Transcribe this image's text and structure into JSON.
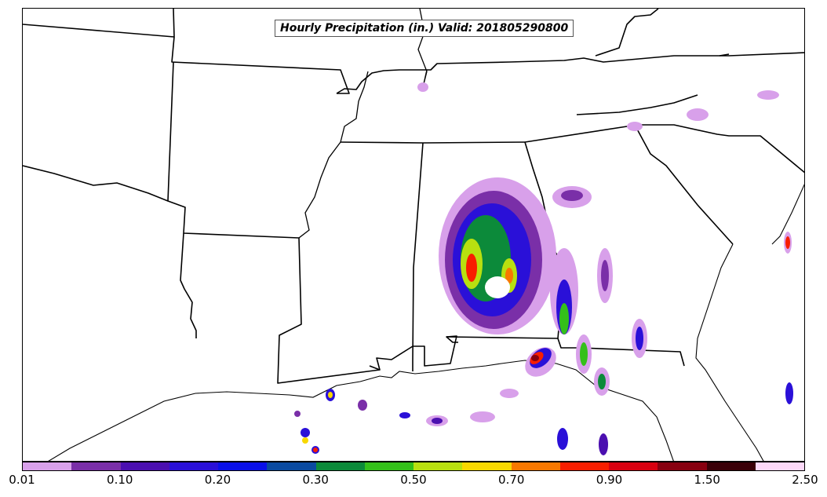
{
  "title": "Hourly Precipitation (in.) Valid: 201805290800",
  "colorbar": {
    "colors": [
      "#d8a0ea",
      "#7a2fa8",
      "#4b0fb0",
      "#2a10d8",
      "#0a10e8",
      "#0a4aa0",
      "#0c8a3a",
      "#34c01a",
      "#b8e010",
      "#f8d800",
      "#f87800",
      "#f81e00",
      "#d80010",
      "#880010",
      "#3a0008",
      "#fcd8f8"
    ],
    "labels": [
      "0.01",
      "0.10",
      "0.20",
      "0.30",
      "0.50",
      "0.70",
      "0.90",
      "1.50",
      "2.50"
    ]
  }
}
